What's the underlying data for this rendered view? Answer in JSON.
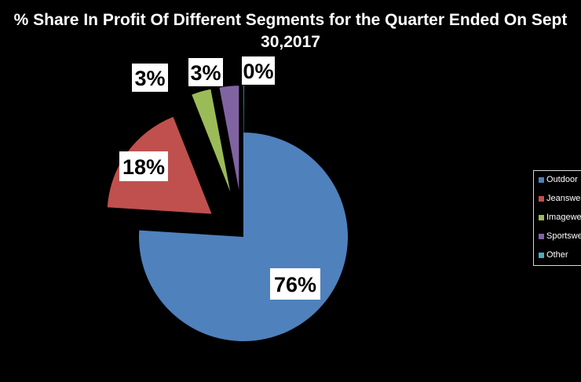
{
  "chart_data": {
    "type": "pie",
    "title_line1": "% Share In Profit Of Different Segments for the Quarter Ended On Sept",
    "title_line2": "30,2017",
    "categories": [
      "Outdoor",
      "Jeanswear",
      "Imagewear",
      "Sportswear",
      "Other"
    ],
    "values": [
      76,
      18,
      3,
      3,
      0
    ],
    "data_labels": [
      "76%",
      "18%",
      "3%",
      "3%",
      "0%"
    ],
    "colors": [
      "#4f81bd",
      "#c0504d",
      "#9bbb59",
      "#8064a2",
      "#4bacc6"
    ],
    "exploded": true,
    "legend_position": "right"
  }
}
